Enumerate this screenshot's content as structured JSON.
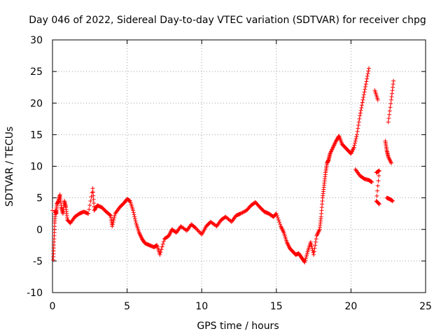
{
  "chart_data": {
    "type": "scatter",
    "title": "Day 046 of 2022, Sidereal Day-to-day VTEC variation (SDTVAR) for receiver chpg",
    "xlabel": "GPS time / hours",
    "ylabel": "SDTVAR / TECUs",
    "xlim": [
      0,
      25
    ],
    "ylim": [
      -10,
      30
    ],
    "xticks": [
      0,
      5,
      10,
      15,
      20,
      25
    ],
    "yticks": [
      -10,
      -5,
      0,
      5,
      10,
      15,
      20,
      25,
      30
    ],
    "grid": true,
    "marker": "+",
    "marker_color": "#ff0000",
    "series": [
      {
        "name": "SDTVAR",
        "points": [
          [
            0.0,
            3.0
          ],
          [
            0.05,
            -4.8
          ],
          [
            0.1,
            -2.0
          ],
          [
            0.15,
            1.0
          ],
          [
            0.2,
            3.0
          ],
          [
            0.25,
            2.5
          ],
          [
            0.3,
            4.0
          ],
          [
            0.4,
            4.5
          ],
          [
            0.5,
            5.5
          ],
          [
            0.6,
            3.5
          ],
          [
            0.7,
            2.5
          ],
          [
            0.8,
            4.5
          ],
          [
            0.9,
            3.5
          ],
          [
            1.0,
            1.5
          ],
          [
            1.2,
            1.0
          ],
          [
            1.5,
            2.0
          ],
          [
            1.8,
            2.5
          ],
          [
            2.1,
            2.8
          ],
          [
            2.4,
            2.5
          ],
          [
            2.7,
            6.5
          ],
          [
            2.8,
            3.0
          ],
          [
            3.0,
            3.8
          ],
          [
            3.3,
            3.5
          ],
          [
            3.6,
            2.8
          ],
          [
            3.9,
            2.2
          ],
          [
            4.0,
            0.5
          ],
          [
            4.2,
            2.5
          ],
          [
            4.5,
            3.5
          ],
          [
            4.8,
            4.2
          ],
          [
            5.0,
            4.8
          ],
          [
            5.2,
            4.5
          ],
          [
            5.4,
            3.0
          ],
          [
            5.6,
            1.0
          ],
          [
            5.8,
            -0.5
          ],
          [
            6.0,
            -1.5
          ],
          [
            6.2,
            -2.2
          ],
          [
            6.5,
            -2.5
          ],
          [
            6.8,
            -2.8
          ],
          [
            7.0,
            -2.5
          ],
          [
            7.2,
            -4.0
          ],
          [
            7.5,
            -1.5
          ],
          [
            7.8,
            -1.0
          ],
          [
            8.0,
            0.0
          ],
          [
            8.3,
            -0.5
          ],
          [
            8.6,
            0.5
          ],
          [
            9.0,
            -0.2
          ],
          [
            9.3,
            0.8
          ],
          [
            9.6,
            0.2
          ],
          [
            10.0,
            -0.8
          ],
          [
            10.3,
            0.5
          ],
          [
            10.6,
            1.2
          ],
          [
            11.0,
            0.5
          ],
          [
            11.3,
            1.5
          ],
          [
            11.6,
            2.0
          ],
          [
            12.0,
            1.2
          ],
          [
            12.3,
            2.2
          ],
          [
            12.6,
            2.5
          ],
          [
            13.0,
            3.0
          ],
          [
            13.3,
            3.8
          ],
          [
            13.6,
            4.3
          ],
          [
            13.9,
            3.5
          ],
          [
            14.2,
            2.8
          ],
          [
            14.5,
            2.5
          ],
          [
            14.8,
            2.0
          ],
          [
            15.0,
            2.5
          ],
          [
            15.3,
            0.5
          ],
          [
            15.5,
            -0.5
          ],
          [
            15.7,
            -2.0
          ],
          [
            15.9,
            -3.0
          ],
          [
            16.1,
            -3.5
          ],
          [
            16.3,
            -4.0
          ],
          [
            16.5,
            -3.8
          ],
          [
            16.7,
            -4.5
          ],
          [
            16.9,
            -5.2
          ],
          [
            17.1,
            -3.5
          ],
          [
            17.3,
            -2.0
          ],
          [
            17.5,
            -4.0
          ],
          [
            17.7,
            -1.0
          ],
          [
            17.9,
            0.0
          ],
          [
            18.0,
            2.0
          ],
          [
            18.1,
            5.0
          ],
          [
            18.2,
            7.0
          ],
          [
            18.3,
            9.0
          ],
          [
            18.4,
            10.5
          ],
          [
            18.5,
            11.0
          ],
          [
            18.6,
            12.0
          ],
          [
            18.8,
            13.0
          ],
          [
            19.0,
            14.0
          ],
          [
            19.2,
            14.8
          ],
          [
            19.4,
            13.5
          ],
          [
            19.6,
            13.0
          ],
          [
            19.8,
            12.5
          ],
          [
            20.0,
            12.0
          ],
          [
            20.2,
            13.0
          ],
          [
            20.4,
            15.0
          ],
          [
            20.6,
            18.0
          ],
          [
            20.8,
            20.5
          ],
          [
            21.0,
            23.0
          ],
          [
            21.2,
            25.5
          ],
          [
            20.3,
            9.5
          ],
          [
            20.6,
            8.5
          ],
          [
            20.9,
            8.0
          ],
          [
            21.2,
            7.8
          ],
          [
            21.4,
            7.5
          ],
          [
            21.6,
            22.0
          ],
          [
            21.8,
            20.5
          ],
          [
            21.7,
            9.0
          ],
          [
            21.9,
            9.3
          ],
          [
            21.7,
            4.5
          ],
          [
            21.9,
            4.0
          ],
          [
            22.3,
            14.0
          ],
          [
            22.4,
            12.5
          ],
          [
            22.5,
            11.5
          ],
          [
            22.7,
            10.5
          ],
          [
            22.5,
            17.0
          ],
          [
            22.7,
            20.5
          ],
          [
            22.85,
            23.5
          ],
          [
            22.4,
            5.0
          ],
          [
            22.6,
            4.8
          ],
          [
            22.8,
            4.5
          ]
        ]
      }
    ]
  }
}
